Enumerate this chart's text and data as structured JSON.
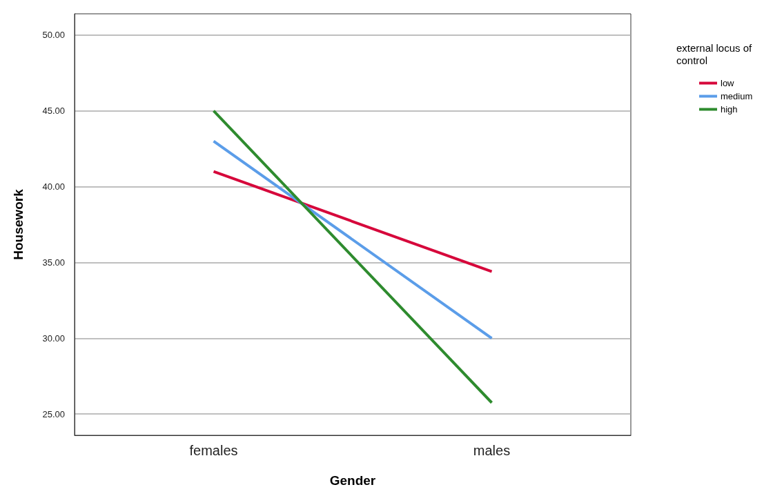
{
  "chart_data": {
    "type": "line",
    "xlabel": "Gender",
    "ylabel": "Housework",
    "legend_title": "external locus of control",
    "categories": [
      "females",
      "males"
    ],
    "series": [
      {
        "name": "low",
        "color": "#d6083b",
        "values": [
          41,
          34.4
        ]
      },
      {
        "name": "medium",
        "color": "#5b9de9",
        "values": [
          43,
          30
        ]
      },
      {
        "name": "high",
        "color": "#2e8b2e",
        "values": [
          45,
          25.75
        ]
      }
    ],
    "ylim": [
      23.6,
      51.4
    ],
    "yticks": [
      {
        "value": 25,
        "label": "25.00"
      },
      {
        "value": 30,
        "label": "30.00"
      },
      {
        "value": 35,
        "label": "35.00"
      },
      {
        "value": 40,
        "label": "40.00"
      },
      {
        "value": 45,
        "label": "45.00"
      },
      {
        "value": 50,
        "label": "50.00"
      }
    ],
    "grid": "y",
    "legend": "top right",
    "marker": "none",
    "line_style": "solid"
  }
}
